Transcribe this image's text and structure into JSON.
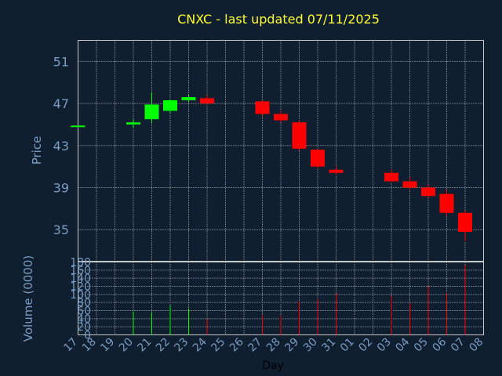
{
  "chart_data": {
    "type": "candlestick",
    "title": "CNXC - last updated 07/11/2025",
    "xlabel": "Day",
    "price_ylabel": "Price",
    "volume_ylabel": "Volume (0000)",
    "grid": true,
    "x_ticks": [
      "17",
      "18",
      "19",
      "20",
      "21",
      "22",
      "23",
      "24",
      "25",
      "26",
      "27",
      "28",
      "29",
      "30",
      "31",
      "01",
      "02",
      "03",
      "04",
      "05",
      "06",
      "07",
      "08"
    ],
    "price_ylim": [
      32,
      53
    ],
    "price_yticks": [
      35,
      39,
      43,
      47,
      51
    ],
    "volume_ylim": [
      0,
      180
    ],
    "volume_yticks": [
      0,
      20,
      40,
      60,
      80,
      100,
      120,
      140,
      160,
      180
    ],
    "candles": [
      {
        "day": "17",
        "open": 44.9,
        "high": 44.9,
        "low": 44.9,
        "close": 44.9,
        "volume": 0
      },
      {
        "day": "20",
        "open": 45.0,
        "high": 45.5,
        "low": 44.7,
        "close": 45.2,
        "volume": 58
      },
      {
        "day": "21",
        "open": 45.5,
        "high": 48.1,
        "low": 45.2,
        "close": 46.9,
        "volume": 55
      },
      {
        "day": "22",
        "open": 46.3,
        "high": 47.4,
        "low": 46.1,
        "close": 47.3,
        "volume": 72
      },
      {
        "day": "23",
        "open": 47.3,
        "high": 47.8,
        "low": 47.2,
        "close": 47.6,
        "volume": 65
      },
      {
        "day": "24",
        "open": 47.5,
        "high": 47.8,
        "low": 46.9,
        "close": 47.0,
        "volume": 40
      },
      {
        "day": "27",
        "open": 47.2,
        "high": 47.3,
        "low": 45.8,
        "close": 46.0,
        "volume": 48
      },
      {
        "day": "28",
        "open": 46.0,
        "high": 46.3,
        "low": 45.2,
        "close": 45.4,
        "volume": 48
      },
      {
        "day": "29",
        "open": 45.2,
        "high": 45.4,
        "low": 42.5,
        "close": 42.7,
        "volume": 82
      },
      {
        "day": "30",
        "open": 42.6,
        "high": 42.7,
        "low": 40.8,
        "close": 41.0,
        "volume": 88
      },
      {
        "day": "31",
        "open": 40.7,
        "high": 41.0,
        "low": 40.2,
        "close": 40.4,
        "volume": 102
      },
      {
        "day": "03",
        "open": 40.4,
        "high": 40.7,
        "low": 39.5,
        "close": 39.6,
        "volume": 96
      },
      {
        "day": "04",
        "open": 39.6,
        "high": 40.0,
        "low": 38.8,
        "close": 39.0,
        "volume": 78
      },
      {
        "day": "05",
        "open": 39.0,
        "high": 39.3,
        "low": 38.0,
        "close": 38.2,
        "volume": 120
      },
      {
        "day": "06",
        "open": 38.4,
        "high": 38.8,
        "low": 36.3,
        "close": 36.6,
        "volume": 104
      },
      {
        "day": "07",
        "open": 36.6,
        "high": 36.8,
        "low": 33.9,
        "close": 34.8,
        "volume": 172
      }
    ]
  },
  "colors": {
    "background": "#0f1f30",
    "grid": "#c8c8c8",
    "axis_text": "#7a9cc0",
    "title": "#ffff33",
    "up": "#00ff00",
    "down": "#ff0000",
    "xlabel": "#000000"
  }
}
